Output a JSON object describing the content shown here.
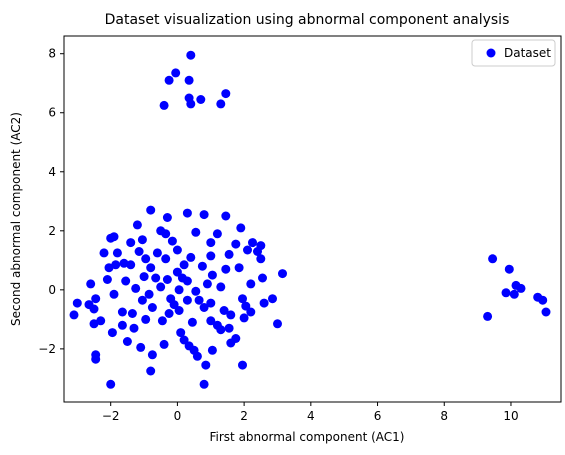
{
  "chart_data": {
    "type": "scatter",
    "title": "Dataset visualization using abnormal component analysis",
    "xlabel": "First abnormal component (AC1)",
    "ylabel": "Second abnormal component (AC2)",
    "xlim": [
      -3.4,
      11.5
    ],
    "ylim": [
      -3.8,
      8.6
    ],
    "xticks": [
      -2,
      0,
      2,
      4,
      6,
      8,
      10
    ],
    "yticks": [
      -2,
      0,
      2,
      4,
      6,
      8
    ],
    "xtick_labels": [
      "−2",
      "0",
      "2",
      "4",
      "6",
      "8",
      "10"
    ],
    "ytick_labels": [
      "−2",
      "0",
      "2",
      "4",
      "6",
      "8"
    ],
    "grid": false,
    "legend": {
      "placement": "top-right",
      "entries": [
        "Dataset"
      ]
    },
    "marker_color": "#0000ff",
    "series": [
      {
        "name": "Dataset",
        "points": [
          [
            0.4,
            7.95
          ],
          [
            -0.05,
            7.35
          ],
          [
            -0.25,
            7.1
          ],
          [
            0.35,
            7.1
          ],
          [
            1.45,
            6.65
          ],
          [
            0.35,
            6.5
          ],
          [
            0.7,
            6.45
          ],
          [
            0.4,
            6.3
          ],
          [
            1.3,
            6.3
          ],
          [
            -0.4,
            6.25
          ],
          [
            9.45,
            1.05
          ],
          [
            9.95,
            0.7
          ],
          [
            10.15,
            0.15
          ],
          [
            10.3,
            0.05
          ],
          [
            9.85,
            -0.1
          ],
          [
            10.1,
            -0.15
          ],
          [
            10.8,
            -0.25
          ],
          [
            10.95,
            -0.35
          ],
          [
            9.3,
            -0.9
          ],
          [
            11.05,
            -0.75
          ],
          [
            -0.8,
            2.7
          ],
          [
            0.3,
            2.6
          ],
          [
            1.45,
            2.5
          ],
          [
            0.8,
            2.55
          ],
          [
            -0.3,
            2.45
          ],
          [
            -1.2,
            2.2
          ],
          [
            1.9,
            2.1
          ],
          [
            -1.05,
            1.7
          ],
          [
            -1.9,
            1.8
          ],
          [
            -2.0,
            1.75
          ],
          [
            2.25,
            1.6
          ],
          [
            2.5,
            1.5
          ],
          [
            2.1,
            1.35
          ],
          [
            2.4,
            1.3
          ],
          [
            -2.2,
            1.25
          ],
          [
            2.5,
            1.05
          ],
          [
            -1.85,
            0.85
          ],
          [
            3.15,
            0.55
          ],
          [
            2.55,
            0.4
          ],
          [
            -2.6,
            0.2
          ],
          [
            -2.1,
            0.35
          ],
          [
            -2.45,
            -0.3
          ],
          [
            -2.65,
            -0.5
          ],
          [
            -3.0,
            -0.45
          ],
          [
            -2.5,
            -0.65
          ],
          [
            -3.1,
            -0.85
          ],
          [
            -2.3,
            -1.05
          ],
          [
            -2.5,
            -1.15
          ],
          [
            2.85,
            -0.3
          ],
          [
            2.6,
            -0.45
          ],
          [
            2.2,
            -0.75
          ],
          [
            2.0,
            -0.95
          ],
          [
            3.0,
            -1.15
          ],
          [
            1.75,
            -1.65
          ],
          [
            1.6,
            -1.8
          ],
          [
            -1.95,
            -1.45
          ],
          [
            -1.5,
            -1.75
          ],
          [
            -2.45,
            -2.2
          ],
          [
            -2.45,
            -2.35
          ],
          [
            -1.1,
            -1.95
          ],
          [
            -0.75,
            -2.2
          ],
          [
            0.5,
            -2.05
          ],
          [
            1.05,
            -2.05
          ],
          [
            -0.8,
            -2.75
          ],
          [
            0.85,
            -2.55
          ],
          [
            1.95,
            -2.55
          ],
          [
            -2.0,
            -3.2
          ],
          [
            0.8,
            -3.2
          ],
          [
            -0.35,
            1.9
          ],
          [
            0.55,
            1.95
          ],
          [
            1.2,
            1.9
          ],
          [
            -1.4,
            1.6
          ],
          [
            1.0,
            1.6
          ],
          [
            -0.6,
            1.25
          ],
          [
            1.55,
            1.2
          ],
          [
            -1.6,
            0.9
          ],
          [
            1.85,
            0.75
          ],
          [
            -1.55,
            0.3
          ],
          [
            2.2,
            0.2
          ],
          [
            -1.9,
            -0.15
          ],
          [
            1.95,
            -0.3
          ],
          [
            -1.65,
            -0.75
          ],
          [
            1.6,
            -0.85
          ],
          [
            -1.3,
            -1.3
          ],
          [
            1.3,
            -1.35
          ],
          [
            -0.4,
            -1.85
          ],
          [
            0.35,
            -1.9
          ],
          [
            -1.25,
            0.05
          ],
          [
            1.3,
            0.1
          ],
          [
            0.0,
            1.35
          ],
          [
            0.1,
            -1.45
          ],
          [
            -0.75,
            -0.6
          ],
          [
            0.8,
            -0.6
          ],
          [
            -0.8,
            0.75
          ],
          [
            0.75,
            0.8
          ],
          [
            -0.3,
            0.35
          ],
          [
            0.3,
            0.3
          ],
          [
            -0.2,
            -0.3
          ],
          [
            0.3,
            -0.35
          ],
          [
            0.05,
            0.0
          ],
          [
            -0.5,
            0.1
          ],
          [
            0.55,
            -0.05
          ],
          [
            0.0,
            0.6
          ],
          [
            0.05,
            -0.7
          ],
          [
            -1.0,
            0.45
          ],
          [
            1.05,
            0.5
          ],
          [
            -1.05,
            -0.35
          ],
          [
            1.0,
            -0.45
          ],
          [
            -0.35,
            1.05
          ],
          [
            0.4,
            1.1
          ],
          [
            -0.45,
            -1.05
          ],
          [
            0.45,
            -1.1
          ],
          [
            -0.95,
            1.05
          ],
          [
            1.0,
            1.15
          ],
          [
            -0.95,
            -1.0
          ],
          [
            1.0,
            -1.05
          ],
          [
            -1.4,
            0.85
          ],
          [
            1.45,
            0.7
          ],
          [
            -1.35,
            -0.8
          ],
          [
            1.4,
            -0.7
          ],
          [
            -0.15,
            1.65
          ],
          [
            0.2,
            -1.7
          ],
          [
            -2.05,
            0.75
          ],
          [
            2.05,
            -0.55
          ],
          [
            -0.5,
            2.0
          ],
          [
            0.6,
            -2.25
          ],
          [
            -1.8,
            1.25
          ],
          [
            1.75,
            1.55
          ],
          [
            -1.65,
            -1.2
          ],
          [
            1.55,
            -1.3
          ],
          [
            -0.65,
            0.4
          ],
          [
            0.65,
            -0.35
          ],
          [
            0.2,
            0.85
          ],
          [
            -0.25,
            -0.8
          ],
          [
            -1.15,
            1.3
          ],
          [
            1.2,
            -1.2
          ],
          [
            0.9,
            0.2
          ],
          [
            -0.85,
            -0.15
          ],
          [
            0.15,
            0.4
          ],
          [
            -0.1,
            -0.5
          ]
        ]
      }
    ]
  }
}
